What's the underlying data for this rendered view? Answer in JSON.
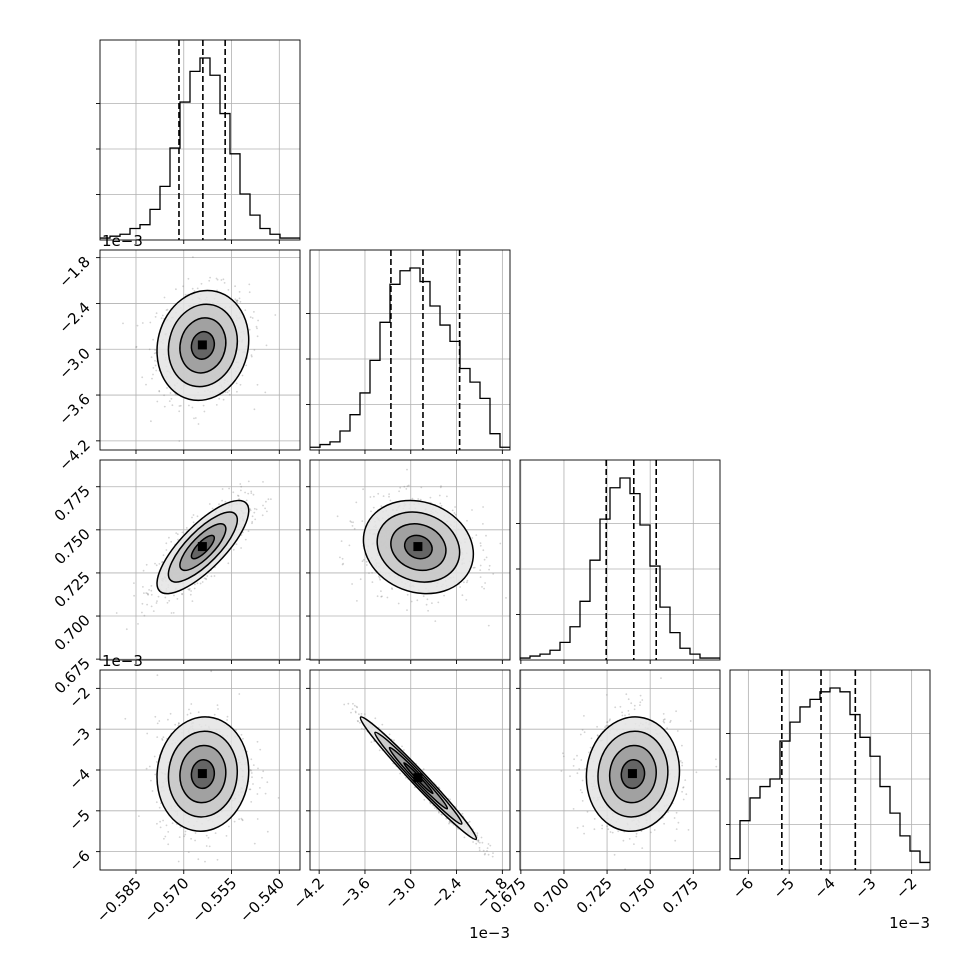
{
  "chart_data": {
    "type": "corner",
    "parameters": [
      {
        "range": [
          -0.5963,
          -0.5335
        ],
        "ticks": [
          -0.585,
          -0.57,
          -0.555,
          -0.54
        ],
        "tick_labels": [
          "−0.585",
          "−0.570",
          "−0.555",
          "−0.540"
        ],
        "quantiles": [
          -0.5715,
          -0.564,
          -0.557
        ],
        "hist_counts": [
          1,
          2,
          3,
          6,
          8,
          16,
          28,
          48,
          72,
          88,
          95,
          86,
          66,
          45,
          24,
          13,
          6,
          3,
          1,
          1
        ]
      },
      {
        "range": [
          -4.32,
          -1.7
        ],
        "offset_text": "1e−3",
        "ticks": [
          -4.2,
          -3.6,
          -3.0,
          -2.4,
          -1.8
        ],
        "tick_labels": [
          "−4.2",
          "−3.6",
          "−3.0",
          "−2.4",
          "−1.8"
        ],
        "quantiles": [
          -3.26,
          -2.84,
          -2.36
        ],
        "hist_counts": [
          1,
          2,
          3,
          7,
          13,
          21,
          33,
          47,
          61,
          66,
          67,
          62,
          53,
          46,
          40,
          30,
          25,
          19,
          6,
          1
        ]
      },
      {
        "range": [
          0.6745,
          0.7905
        ],
        "ticks": [
          0.675,
          0.7,
          0.725,
          0.75,
          0.775
        ],
        "tick_labels": [
          "0.675",
          "0.700",
          "0.725",
          "0.750",
          "0.775"
        ],
        "quantiles": [
          0.7245,
          0.7405,
          0.7535
        ],
        "hist_counts": [
          1,
          2,
          3,
          5,
          9,
          17,
          30,
          51,
          72,
          88,
          93,
          85,
          69,
          48,
          27,
          14,
          6,
          3,
          1,
          1
        ]
      },
      {
        "range": [
          -6.45,
          -1.55
        ],
        "offset_text": "1e−3",
        "ticks": [
          -6,
          -5,
          -4,
          -3,
          -2
        ],
        "tick_labels": [
          "−6",
          "−5",
          "−4",
          "−3",
          "−2"
        ],
        "quantiles": [
          -5.18,
          -4.22,
          -3.38
        ],
        "hist_counts": [
          3,
          13,
          19,
          22,
          24,
          34,
          39,
          43,
          45,
          47,
          48,
          47,
          41,
          35,
          30,
          22,
          15,
          9,
          5,
          2
        ]
      }
    ],
    "pairs": [
      {
        "x": 0,
        "y": 1,
        "mean": [
          -0.564,
          -2.95
        ],
        "sd": [
          0.0072,
          0.36
        ],
        "rho": 0.1
      },
      {
        "x": 0,
        "y": 2,
        "mean": [
          -0.564,
          0.74
        ],
        "sd": [
          0.0072,
          0.0135
        ],
        "rho": 0.78
      },
      {
        "x": 0,
        "y": 3,
        "mean": [
          -0.564,
          -4.1
        ],
        "sd": [
          0.0072,
          0.7
        ],
        "rho": 0.05
      },
      {
        "x": 1,
        "y": 2,
        "mean": [
          -2.9,
          0.74
        ],
        "sd": [
          0.36,
          0.0135
        ],
        "rho": -0.15
      },
      {
        "x": 1,
        "y": 3,
        "mean": [
          -2.9,
          -4.2
        ],
        "sd": [
          0.38,
          0.75
        ],
        "rho": -0.985
      },
      {
        "x": 2,
        "y": 3,
        "mean": [
          0.74,
          -4.1
        ],
        "sd": [
          0.0135,
          0.7
        ],
        "rho": 0.05
      }
    ],
    "contour_levels_sigma": [
      0.5,
      1.0,
      1.5,
      2.0
    ],
    "x_offset_text": "1e−3",
    "grid": true
  },
  "colors": {
    "axis": "#000000",
    "grid": "#b0b0b0",
    "sample": "#808080"
  }
}
